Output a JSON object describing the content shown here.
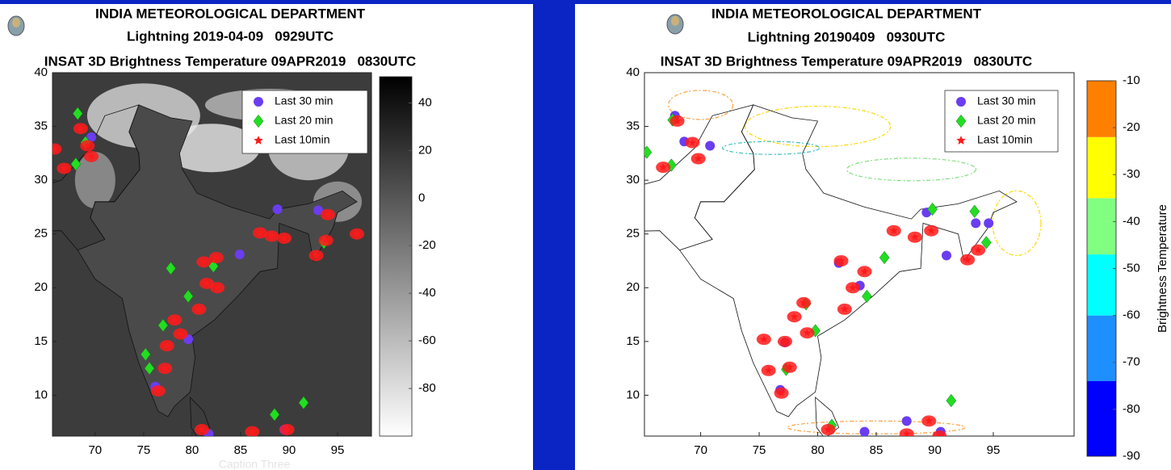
{
  "caption": "Caption Three",
  "maps": [
    {
      "title_lines": [
        "INDIA METEOROLOGICAL DEPARTMENT",
        "Lightning 2019-04-09   0929UTC",
        "INSAT 3D Brightness Temperature 09APR2019   0830UTC"
      ],
      "background": "grayscale",
      "xlim": [
        65.6,
        98.5
      ],
      "ylim": [
        6.2,
        40
      ],
      "xticks": [
        70,
        75,
        80,
        85,
        90,
        95
      ],
      "yticks": [
        10,
        15,
        20,
        25,
        30,
        35,
        40
      ],
      "clim": [
        -100,
        51
      ],
      "cticks": [
        40,
        20,
        0,
        -20,
        -40,
        -60,
        -80
      ],
      "colormap": [
        "#ffffff",
        "#000000"
      ],
      "series": [
        {
          "name": "Last 30 min",
          "color": "#6a3df0",
          "marker": "circle",
          "points": [
            [
              69.6,
              34
            ],
            [
              88.8,
              27.3
            ],
            [
              93,
              27.2
            ],
            [
              84.9,
              23.1
            ],
            [
              79.6,
              15.2
            ],
            [
              76.2,
              10.8
            ],
            [
              81.7,
              6.4
            ],
            [
              89.5,
              6.8
            ]
          ]
        },
        {
          "name": "Last 20 min",
          "color": "#22dd22",
          "marker": "diamond",
          "points": [
            [
              68.2,
              36.2
            ],
            [
              69,
              33.5
            ],
            [
              68,
              31.5
            ],
            [
              93.6,
              24.2
            ],
            [
              77.8,
              21.8
            ],
            [
              75.2,
              13.8
            ],
            [
              75.6,
              12.5
            ],
            [
              77,
              16.5
            ],
            [
              79.6,
              19.2
            ],
            [
              91.5,
              9.3
            ],
            [
              88.5,
              8.2
            ],
            [
              82.2,
              22
            ]
          ]
        },
        {
          "name": "Last 10min",
          "color": "#ff1a1a",
          "marker": "star",
          "points": [
            [
              68.5,
              34.8
            ],
            [
              69.2,
              33.2
            ],
            [
              69.6,
              32.2
            ],
            [
              66.8,
              31.1
            ],
            [
              65.8,
              32.9
            ],
            [
              88.2,
              24.8
            ],
            [
              89.5,
              24.6
            ],
            [
              87,
              25.1
            ],
            [
              92.8,
              23
            ],
            [
              93.8,
              24.4
            ],
            [
              94,
              26.8
            ],
            [
              81.2,
              22.4
            ],
            [
              82.5,
              22.8
            ],
            [
              81.5,
              20.4
            ],
            [
              82.6,
              20
            ],
            [
              80.7,
              18
            ],
            [
              78.2,
              17
            ],
            [
              78.8,
              15.7
            ],
            [
              77.4,
              14.6
            ],
            [
              77.2,
              12.5
            ],
            [
              76.5,
              10.4
            ],
            [
              81,
              6.8
            ],
            [
              86.2,
              6.6
            ],
            [
              89.8,
              6.8
            ],
            [
              97,
              25
            ]
          ]
        }
      ],
      "legend": "upper right"
    },
    {
      "title_lines": [
        "INDIA METEOROLOGICAL DEPARTMENT",
        "Lightning 20190409   0930UTC",
        "INSAT 3D Brightness Temperature 09APR2019   0830UTC"
      ],
      "background": "contour",
      "xlim": [
        65.2,
        101.9
      ],
      "ylim": [
        6.2,
        40
      ],
      "xticks": [
        70,
        75,
        80,
        85,
        90,
        95
      ],
      "yticks": [
        10,
        15,
        20,
        25,
        30,
        35,
        40
      ],
      "clim": [
        -90,
        -10
      ],
      "cticks": [
        -10,
        -20,
        -30,
        -40,
        -50,
        -60,
        -70,
        -80,
        -90
      ],
      "cbands": {
        "edges": [
          -90,
          -74,
          -60,
          -47,
          -35,
          -22,
          -10
        ],
        "colors": [
          "#0000ff",
          "#1e8fff",
          "#00ffff",
          "#80ff80",
          "#ffff00",
          "#ff8000"
        ]
      },
      "clabel": "Brightness Temperature",
      "series": [
        {
          "name": "Last 30 min",
          "color": "#6a3df0",
          "marker": "circle",
          "points": [
            [
              67.8,
              36
            ],
            [
              68.6,
              33.6
            ],
            [
              70.8,
              33.2
            ],
            [
              89.3,
              27
            ],
            [
              93.5,
              26
            ],
            [
              94.6,
              26
            ],
            [
              91,
              23
            ],
            [
              81.8,
              22.3
            ],
            [
              83.6,
              20.2
            ],
            [
              77.2,
              14.9
            ],
            [
              76.8,
              10.5
            ],
            [
              84,
              6.6
            ],
            [
              90.5,
              6.6
            ],
            [
              87.6,
              7.6
            ]
          ]
        },
        {
          "name": "Last 20 min",
          "color": "#22dd22",
          "marker": "diamond",
          "points": [
            [
              67.6,
              35.6
            ],
            [
              65.4,
              32.6
            ],
            [
              67.5,
              31.4
            ],
            [
              89.8,
              27.3
            ],
            [
              93.4,
              27.1
            ],
            [
              94.4,
              24.2
            ],
            [
              85.7,
              22.8
            ],
            [
              84.2,
              19.2
            ],
            [
              79,
              18.5
            ],
            [
              79.8,
              16
            ],
            [
              77.3,
              12.4
            ],
            [
              91.4,
              9.5
            ],
            [
              81.2,
              7.2
            ]
          ]
        },
        {
          "name": "Last 10min",
          "color": "#ff1a1a",
          "marker": "star",
          "points": [
            [
              68,
              35.5
            ],
            [
              69.3,
              33.5
            ],
            [
              69.8,
              32
            ],
            [
              66.8,
              31.2
            ],
            [
              82,
              22.5
            ],
            [
              83,
              20
            ],
            [
              84,
              21.5
            ],
            [
              82.3,
              18
            ],
            [
              86.5,
              25.3
            ],
            [
              88.3,
              24.7
            ],
            [
              89.7,
              25.3
            ],
            [
              92.8,
              22.6
            ],
            [
              93.7,
              23.5
            ],
            [
              78,
              17.3
            ],
            [
              78.8,
              18.6
            ],
            [
              79.1,
              15.8
            ],
            [
              77.2,
              15
            ],
            [
              77.6,
              12.6
            ],
            [
              76.9,
              10.2
            ],
            [
              80.9,
              6.8
            ],
            [
              87.6,
              6.4
            ],
            [
              89.5,
              7.6
            ],
            [
              90.4,
              6.2
            ],
            [
              75.4,
              15.2
            ],
            [
              75.8,
              12.3
            ]
          ]
        }
      ],
      "legend": "upper right"
    }
  ]
}
